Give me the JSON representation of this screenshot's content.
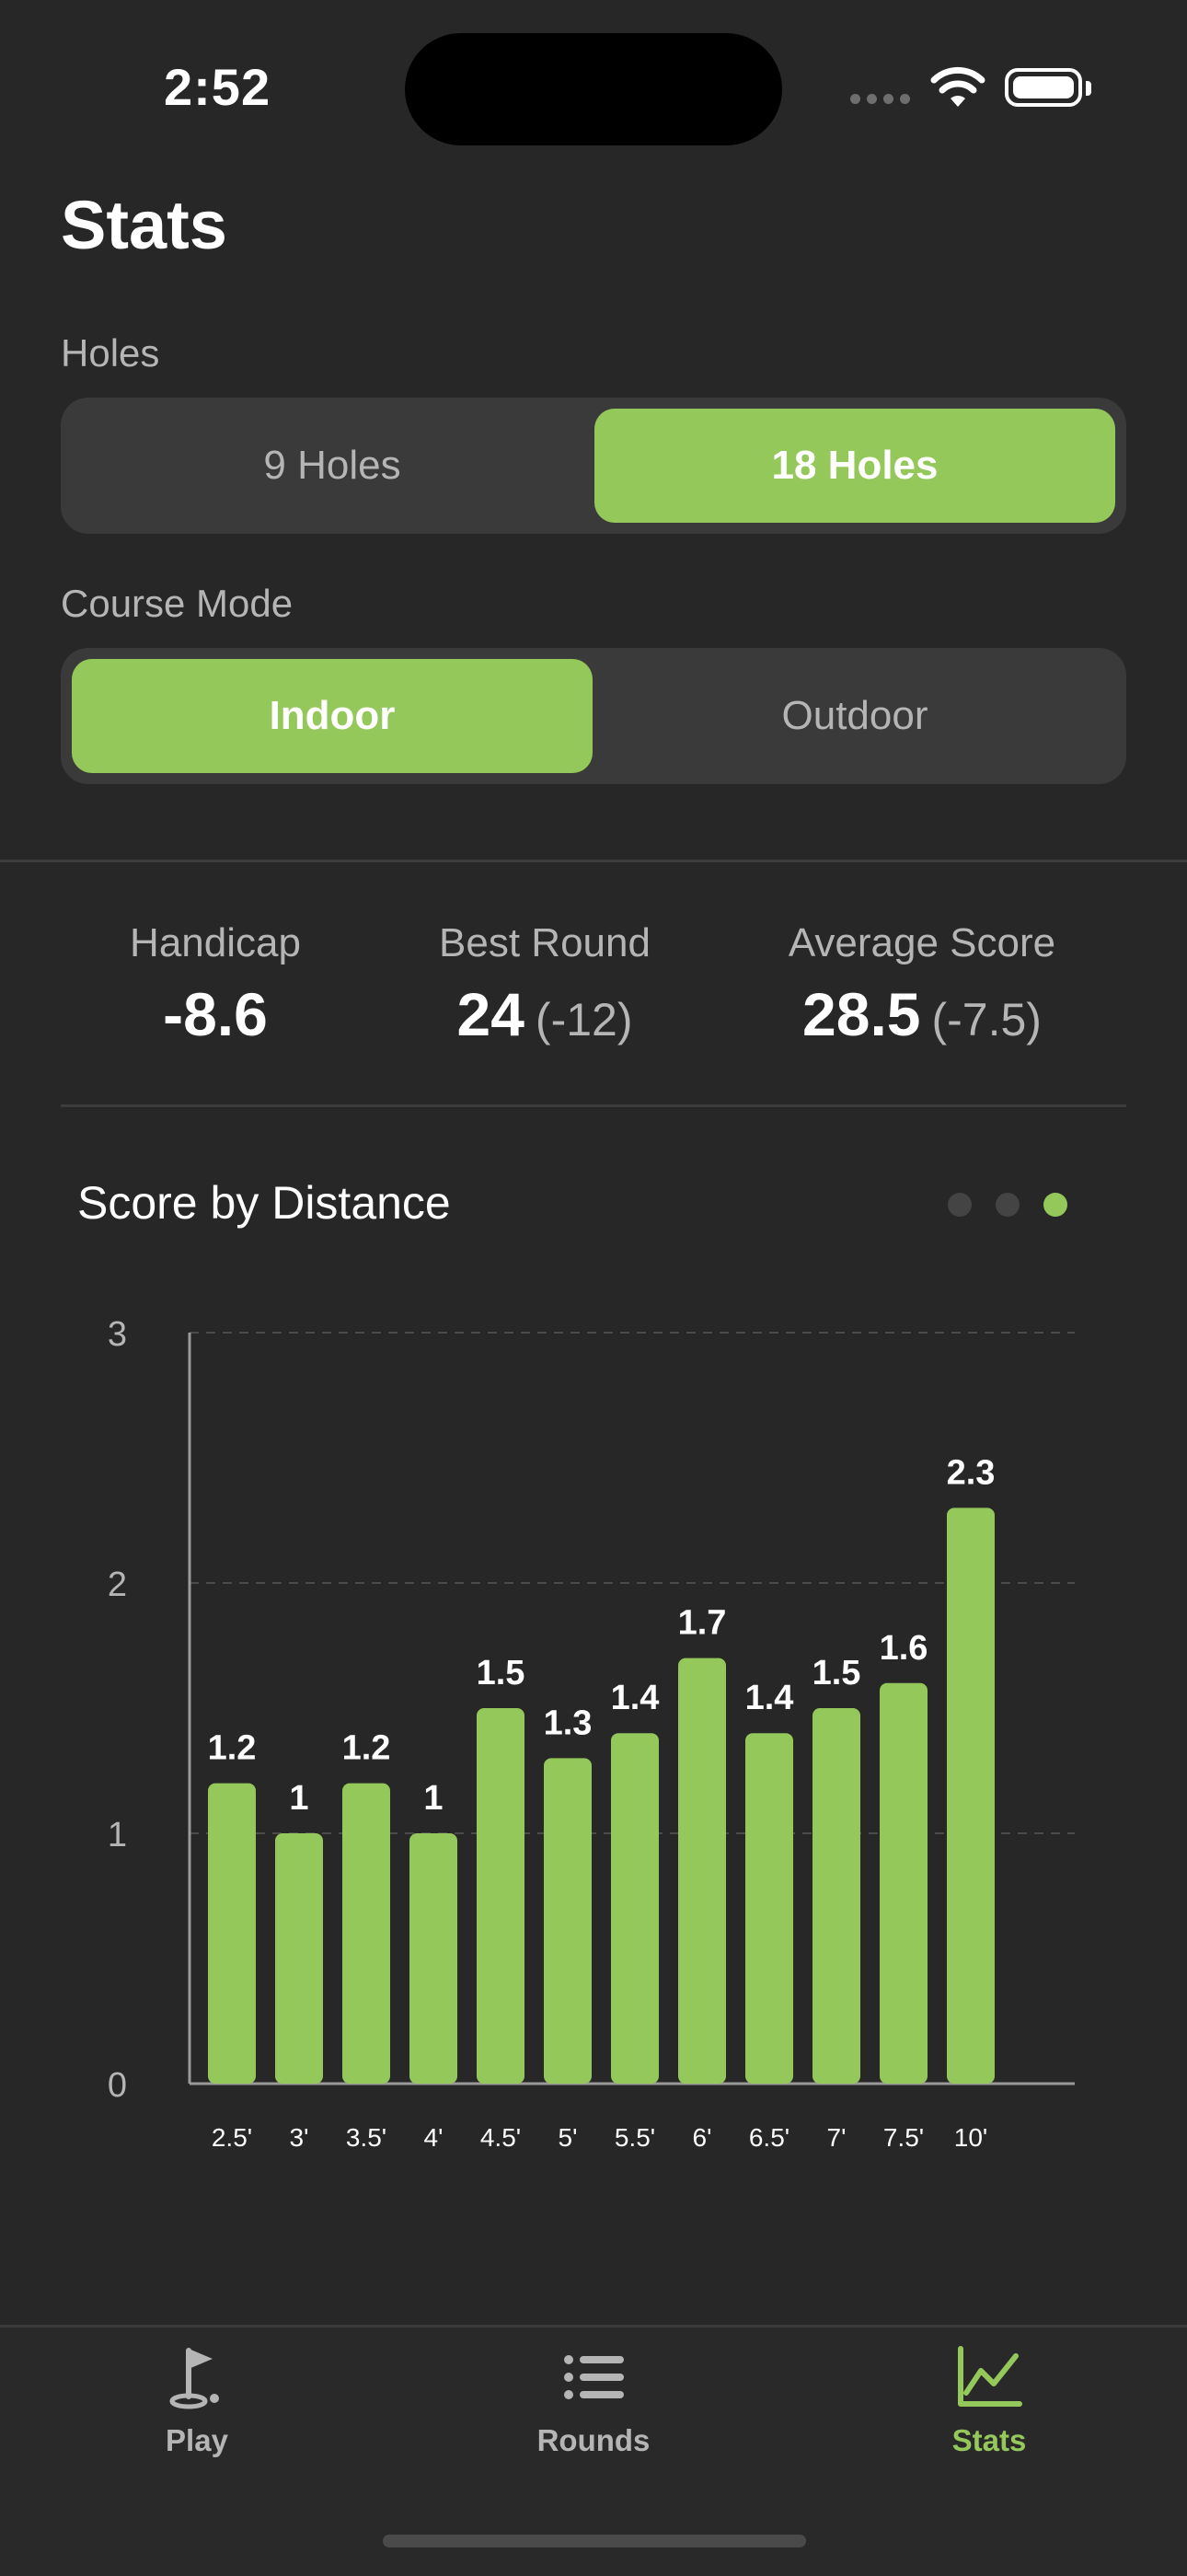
{
  "status_bar": {
    "time": "2:52"
  },
  "page": {
    "title": "Stats"
  },
  "holes": {
    "label": "Holes",
    "options": [
      "9 Holes",
      "18 Holes"
    ],
    "selected": "18 Holes"
  },
  "course_mode": {
    "label": "Course Mode",
    "options": [
      "Indoor",
      "Outdoor"
    ],
    "selected": "Indoor"
  },
  "summary": {
    "handicap": {
      "label": "Handicap",
      "value": "-8.6"
    },
    "best_round": {
      "label": "Best Round",
      "value": "24",
      "relative": "(-12)"
    },
    "average_score": {
      "label": "Average Score",
      "value": "28.5",
      "relative": "(-7.5)"
    }
  },
  "chart_card": {
    "title": "Score by Distance",
    "pages": 3,
    "active_page": 3
  },
  "chart_data": {
    "type": "bar",
    "categories": [
      "2.5'",
      "3'",
      "3.5'",
      "4'",
      "4.5'",
      "5'",
      "5.5'",
      "6'",
      "6.5'",
      "7'",
      "7.5'",
      "10'"
    ],
    "values": [
      1.2,
      1,
      1.2,
      1,
      1.5,
      1.3,
      1.4,
      1.7,
      1.4,
      1.5,
      1.6,
      2.3
    ],
    "value_labels": [
      "1.2",
      "1",
      "1.2",
      "1",
      "1.5",
      "1.3",
      "1.4",
      "1.7",
      "1.4",
      "1.5",
      "1.6",
      "2.3"
    ],
    "ylim": [
      0,
      3
    ],
    "y_ticks": [
      "0",
      "1",
      "2",
      "3"
    ],
    "grid": "dashed horizontal",
    "bar_color": "#94c85a"
  },
  "tab_bar": {
    "items": [
      {
        "label": "Play",
        "icon": "golf-flag-icon"
      },
      {
        "label": "Rounds",
        "icon": "list-icon"
      },
      {
        "label": "Stats",
        "icon": "line-chart-icon"
      }
    ],
    "active": "Stats"
  },
  "colors": {
    "accent": "#94c85a",
    "background": "#272727",
    "segment_bg": "#3a3a3a"
  }
}
